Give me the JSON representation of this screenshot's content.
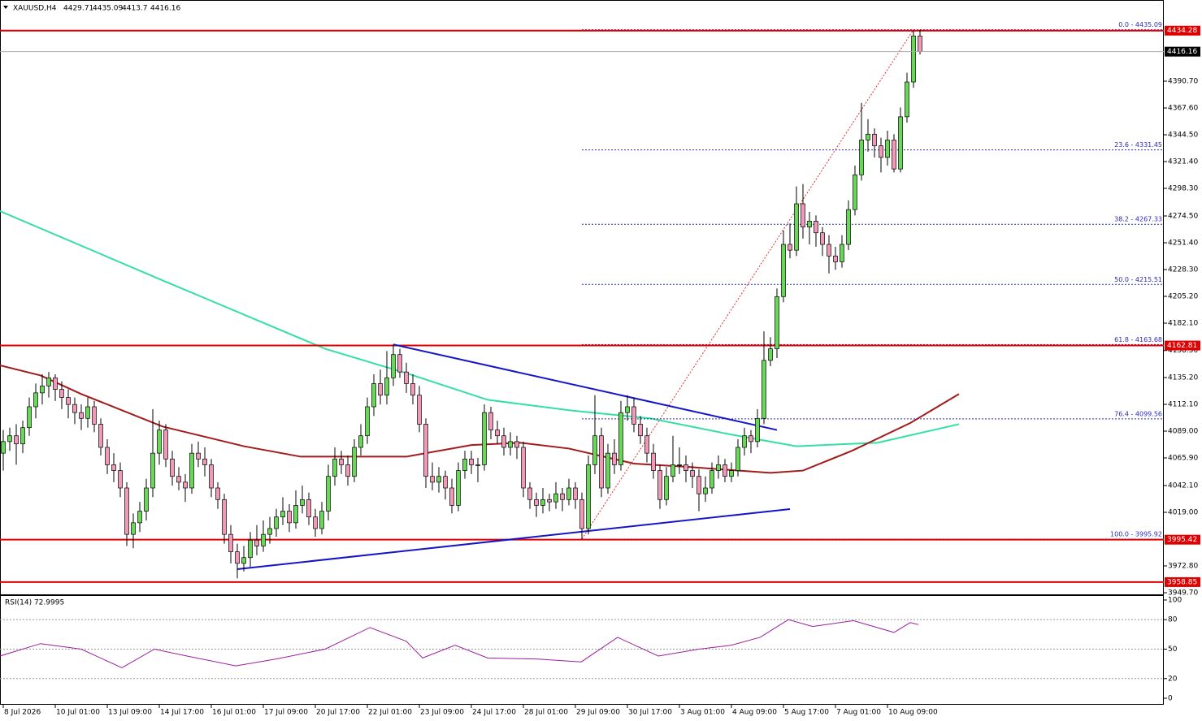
{
  "chart_data": [
    {
      "type": "candlestick",
      "title": "XAUUSD,H4",
      "bull_color": "#6ad65a",
      "bear_color": "#ef9ab8",
      "xlim": [
        -0.5,
        178.5
      ],
      "ylim": [
        3948.3,
        4460.7
      ],
      "xticks": [
        {
          "value": 0,
          "label": "8 Jul 2026"
        },
        {
          "value": 8,
          "label": "10 Jul 01:00"
        },
        {
          "value": 16,
          "label": "13 Jul 09:00"
        },
        {
          "value": 24,
          "label": "14 Jul 17:00"
        },
        {
          "value": 32,
          "label": "16 Jul 01:00"
        },
        {
          "value": 40,
          "label": "17 Jul 09:00"
        },
        {
          "value": 48,
          "label": "20 Jul 17:00"
        },
        {
          "value": 56,
          "label": "22 Jul 01:00"
        },
        {
          "value": 64,
          "label": "23 Jul 09:00"
        },
        {
          "value": 72,
          "label": "24 Jul 17:00"
        },
        {
          "value": 80,
          "label": "28 Jul 01:00"
        },
        {
          "value": 88,
          "label": "29 Jul 09:00"
        },
        {
          "value": 96,
          "label": "30 Jul 17:00"
        },
        {
          "value": 104,
          "label": "3 Aug 01:00"
        },
        {
          "value": 112,
          "label": "4 Aug 09:00"
        },
        {
          "value": 120,
          "label": "5 Aug 17:00"
        },
        {
          "value": 128,
          "label": "7 Aug 01:00"
        },
        {
          "value": 136,
          "label": "10 Aug 09:00"
        }
      ],
      "yticks": [
        {
          "value": 4390.7,
          "label": "4390.70"
        },
        {
          "value": 4367.6,
          "label": "4367.60"
        },
        {
          "value": 4344.5,
          "label": "4344.50"
        },
        {
          "value": 4321.4,
          "label": "4321.40"
        },
        {
          "value": 4298.3,
          "label": "4298.30"
        },
        {
          "value": 4274.5,
          "label": "4274.50"
        },
        {
          "value": 4251.4,
          "label": "4251.40"
        },
        {
          "value": 4228.3,
          "label": "4228.30"
        },
        {
          "value": 4205.2,
          "label": "4205.20"
        },
        {
          "value": 4182.1,
          "label": "4182.10"
        },
        {
          "value": 4158.5,
          "label": "4158.50"
        },
        {
          "value": 4135.2,
          "label": "4135.20"
        },
        {
          "value": 4112.1,
          "label": "4112.10"
        },
        {
          "value": 4089,
          "label": "4089.00"
        },
        {
          "value": 4065.9,
          "label": "4065.90"
        },
        {
          "value": 4042.1,
          "label": "4042.10"
        },
        {
          "value": 4019,
          "label": "4019.00"
        },
        {
          "value": 3972.8,
          "label": "3972.80"
        },
        {
          "value": 3949.7,
          "label": "3949.70"
        }
      ],
      "hlines": [
        {
          "value": 4434.28,
          "color": "#e00000"
        },
        {
          "value": 4162.81,
          "color": "#e00000"
        },
        {
          "value": 3995.42,
          "color": "#e00000"
        },
        {
          "value": 3958.85,
          "color": "#e00000"
        }
      ],
      "fib_color": "#2a2ab8",
      "fib_diag_color": "#e03030",
      "fib_anchor_x": [
        89,
        140
      ],
      "fib": [
        {
          "value": 4435.09,
          "label": "0.0 - 4435.09"
        },
        {
          "value": 4331.45,
          "label": "23.6 - 4331.45"
        },
        {
          "value": 4267.33,
          "label": "38.2 - 4267.33"
        },
        {
          "value": 4215.51,
          "label": "50.0 - 4215.51"
        },
        {
          "value": 4163.68,
          "label": "61.8 - 4163.68"
        },
        {
          "value": 4099.56,
          "label": "76.4 - 4099.56"
        },
        {
          "value": 3995.92,
          "label": "100.0 - 3995.92"
        }
      ],
      "trendlines": [
        {
          "color": "#1414c8",
          "x": [
            60,
            119
          ],
          "y": [
            4163.7,
            4090
          ]
        },
        {
          "color": "#1414c8",
          "x": [
            36,
            121
          ],
          "y": [
            3970,
            4021.8
          ]
        }
      ],
      "moving_averages": [
        {
          "color": "#33e0a0",
          "x": [
            -0.5,
            24.5,
            49.5,
            62,
            74.5,
            87,
            99.5,
            112,
            122,
            134.5,
            147
          ],
          "values": [
            4278.7,
            4219,
            4160,
            4139,
            4116,
            4107,
            4100,
            4086,
            4076,
            4079,
            4095
          ]
        },
        {
          "color": "#a31a1a",
          "x": [
            -0.5,
            5.75,
            12,
            24.5,
            37,
            45.75,
            62,
            72,
            79.5,
            87,
            97,
            105.75,
            118,
            123,
            130.5,
            139.5,
            147
          ],
          "values": [
            4145.7,
            4137,
            4121,
            4093,
            4076,
            4067,
            4067,
            4077,
            4079,
            4074,
            4061,
            4058,
            4053,
            4055,
            4072,
            4096,
            4121
          ]
        }
      ],
      "ohlc": [
        [
          4070,
          4090,
          4055,
          4080
        ],
        [
          4080,
          4092,
          4072,
          4085
        ],
        [
          4085,
          4095,
          4060,
          4078
        ],
        [
          4078,
          4098,
          4070,
          4092
        ],
        [
          4092,
          4118,
          4085,
          4110
        ],
        [
          4110,
          4130,
          4100,
          4122
        ],
        [
          4122,
          4138,
          4112,
          4128
        ],
        [
          4128,
          4140,
          4118,
          4135
        ],
        [
          4135,
          4138,
          4115,
          4125
        ],
        [
          4125,
          4132,
          4108,
          4118
        ],
        [
          4118,
          4125,
          4100,
          4112
        ],
        [
          4112,
          4118,
          4095,
          4105
        ],
        [
          4105,
          4112,
          4090,
          4100
        ],
        [
          4100,
          4118,
          4092,
          4110
        ],
        [
          4110,
          4115,
          4088,
          4095
        ],
        [
          4095,
          4100,
          4068,
          4075
        ],
        [
          4075,
          4082,
          4052,
          4060
        ],
        [
          4060,
          4070,
          4045,
          4055
        ],
        [
          4055,
          4062,
          4032,
          4040
        ],
        [
          4040,
          4045,
          3990,
          4000
        ],
        [
          4000,
          4018,
          3988,
          4010
        ],
        [
          4010,
          4028,
          4002,
          4020
        ],
        [
          4020,
          4048,
          4012,
          4040
        ],
        [
          4040,
          4108,
          4032,
          4070
        ],
        [
          4070,
          4098,
          4060,
          4090
        ],
        [
          4090,
          4095,
          4058,
          4065
        ],
        [
          4065,
          4072,
          4042,
          4050
        ],
        [
          4050,
          4058,
          4038,
          4045
        ],
        [
          4045,
          4052,
          4028,
          4040
        ],
        [
          4040,
          4078,
          4035,
          4070
        ],
        [
          4070,
          4080,
          4058,
          4065
        ],
        [
          4065,
          4075,
          4050,
          4060
        ],
        [
          4060,
          4065,
          4032,
          4040
        ],
        [
          4040,
          4045,
          4022,
          4030
        ],
        [
          4030,
          4035,
          3992,
          4000
        ],
        [
          4000,
          4008,
          3975,
          3985
        ],
        [
          3985,
          3992,
          3962,
          3975
        ],
        [
          3975,
          3990,
          3968,
          3980
        ],
        [
          3980,
          4002,
          3972,
          3995
        ],
        [
          3995,
          4008,
          3982,
          3990
        ],
        [
          3990,
          4012,
          3985,
          4000
        ],
        [
          4000,
          4015,
          3992,
          4005
        ],
        [
          4005,
          4022,
          3998,
          4015
        ],
        [
          4015,
          4032,
          4008,
          4020
        ],
        [
          4020,
          4026,
          4002,
          4010
        ],
        [
          4010,
          4038,
          4005,
          4025
        ],
        [
          4025,
          4042,
          4018,
          4030
        ],
        [
          4030,
          4036,
          4008,
          4015
        ],
        [
          4015,
          4022,
          3998,
          4005
        ],
        [
          4005,
          4028,
          4000,
          4020
        ],
        [
          4020,
          4060,
          4012,
          4050
        ],
        [
          4050,
          4075,
          4042,
          4065
        ],
        [
          4065,
          4072,
          4052,
          4060
        ],
        [
          4060,
          4068,
          4042,
          4050
        ],
        [
          4050,
          4082,
          4045,
          4075
        ],
        [
          4075,
          4095,
          4068,
          4085
        ],
        [
          4085,
          4118,
          4078,
          4110
        ],
        [
          4110,
          4138,
          4102,
          4130
        ],
        [
          4130,
          4142,
          4112,
          4120
        ],
        [
          4120,
          4158,
          4112,
          4135
        ],
        [
          4135,
          4163.68,
          4128,
          4155
        ],
        [
          4155,
          4160,
          4135,
          4140
        ],
        [
          4140,
          4148,
          4122,
          4130
        ],
        [
          4130,
          4138,
          4112,
          4120
        ],
        [
          4120,
          4128,
          4088,
          4095
        ],
        [
          4095,
          4100,
          4040,
          4050
        ],
        [
          4050,
          4062,
          4038,
          4045
        ],
        [
          4045,
          4058,
          4036,
          4050
        ],
        [
          4050,
          4055,
          4030,
          4040
        ],
        [
          4040,
          4048,
          4018,
          4025
        ],
        [
          4025,
          4062,
          4020,
          4055
        ],
        [
          4055,
          4072,
          4048,
          4065
        ],
        [
          4065,
          4072,
          4052,
          4060
        ],
        [
          4060,
          4066,
          4045,
          4060
        ],
        [
          4060,
          4112,
          4055,
          4105
        ],
        [
          4105,
          4110,
          4082,
          4090
        ],
        [
          4090,
          4098,
          4078,
          4085
        ],
        [
          4085,
          4092,
          4068,
          4075
        ],
        [
          4075,
          4088,
          4068,
          4080
        ],
        [
          4080,
          4085,
          4065,
          4075
        ],
        [
          4075,
          4080,
          4032,
          4040
        ],
        [
          4040,
          4045,
          4022,
          4030
        ],
        [
          4030,
          4036,
          4015,
          4025
        ],
        [
          4025,
          4040,
          4018,
          4030
        ],
        [
          4030,
          4035,
          4020,
          4028
        ],
        [
          4028,
          4045,
          4022,
          4035
        ],
        [
          4035,
          4040,
          4020,
          4030
        ],
        [
          4030,
          4048,
          4025,
          4040
        ],
        [
          4040,
          4045,
          4022,
          4030
        ],
        [
          4030,
          4036,
          3995.92,
          4005
        ],
        [
          4005,
          4068,
          4000,
          4060
        ],
        [
          4060,
          4120,
          4052,
          4085
        ],
        [
          4085,
          4092,
          4032,
          4040
        ],
        [
          4040,
          4078,
          4035,
          4070
        ],
        [
          4070,
          4082,
          4052,
          4060
        ],
        [
          4060,
          4115,
          4055,
          4105
        ],
        [
          4105,
          4120,
          4098,
          4110
        ],
        [
          4110,
          4118,
          4088,
          4095
        ],
        [
          4095,
          4102,
          4078,
          4085
        ],
        [
          4085,
          4092,
          4062,
          4070
        ],
        [
          4070,
          4078,
          4048,
          4055
        ],
        [
          4055,
          4060,
          4022,
          4030
        ],
        [
          4030,
          4058,
          4025,
          4050
        ],
        [
          4050,
          4085,
          4045,
          4060
        ],
        [
          4060,
          4075,
          4052,
          4060
        ],
        [
          4060,
          4068,
          4045,
          4055
        ],
        [
          4055,
          4062,
          4040,
          4050
        ],
        [
          4050,
          4056,
          4020,
          4035
        ],
        [
          4035,
          4050,
          4028,
          4040
        ],
        [
          4040,
          4062,
          4035,
          4055
        ],
        [
          4055,
          4068,
          4048,
          4060
        ],
        [
          4060,
          4065,
          4045,
          4050
        ],
        [
          4050,
          4062,
          4045,
          4055
        ],
        [
          4055,
          4082,
          4050,
          4075
        ],
        [
          4075,
          4092,
          4068,
          4085
        ],
        [
          4085,
          4090,
          4070,
          4080
        ],
        [
          4080,
          4108,
          4075,
          4100
        ],
        [
          4100,
          4175,
          4095,
          4150
        ],
        [
          4150,
          4170,
          4145,
          4160
        ],
        [
          4160,
          4212,
          4152,
          4205
        ],
        [
          4205,
          4262,
          4200,
          4250
        ],
        [
          4250,
          4268,
          4238,
          4245
        ],
        [
          4245,
          4300,
          4240,
          4285
        ],
        [
          4285,
          4302,
          4255,
          4265
        ],
        [
          4265,
          4278,
          4250,
          4270
        ],
        [
          4270,
          4275,
          4248,
          4260
        ],
        [
          4260,
          4265,
          4240,
          4250
        ],
        [
          4250,
          4258,
          4225,
          4240
        ],
        [
          4240,
          4248,
          4228,
          4235
        ],
        [
          4235,
          4258,
          4230,
          4250
        ],
        [
          4250,
          4288,
          4245,
          4280
        ],
        [
          4280,
          4318,
          4275,
          4310
        ],
        [
          4310,
          4372,
          4305,
          4340
        ],
        [
          4340,
          4358,
          4330,
          4345
        ],
        [
          4345,
          4350,
          4325,
          4335
        ],
        [
          4335,
          4342,
          4312,
          4325
        ],
        [
          4325,
          4348,
          4318,
          4340
        ],
        [
          4340,
          4345,
          4312,
          4315
        ],
        [
          4315,
          4368,
          4312,
          4360
        ],
        [
          4360,
          4398,
          4355,
          4390
        ],
        [
          4390,
          4434.28,
          4385,
          4429.71
        ],
        [
          4429.71,
          4435.09,
          4413.7,
          4416.16
        ]
      ]
    },
    {
      "type": "line",
      "title": "RSI(14) 72.9995",
      "color": "#9b1fa0",
      "xlim": [
        -0.5,
        178.5
      ],
      "ylim": [
        -6.6,
        104.1
      ],
      "yticks": [
        0,
        20,
        50,
        80,
        100
      ],
      "levels": [
        20,
        50,
        80
      ],
      "x": [
        -0.5,
        5.75,
        12,
        18.25,
        23.25,
        28.25,
        35.75,
        42,
        49.5,
        56.4,
        62,
        64.5,
        69.5,
        74.5,
        82,
        88.9,
        94.5,
        100.75,
        107,
        112,
        116.4,
        120.75,
        124.5,
        130.75,
        137,
        139.5,
        140.75
      ],
      "values": [
        43,
        55.6,
        50,
        31,
        50,
        43,
        33,
        40,
        50,
        72,
        58,
        41,
        54,
        41,
        40,
        37,
        62,
        43,
        50,
        54,
        62,
        80,
        73,
        79,
        67,
        77,
        75
      ]
    }
  ]
}
